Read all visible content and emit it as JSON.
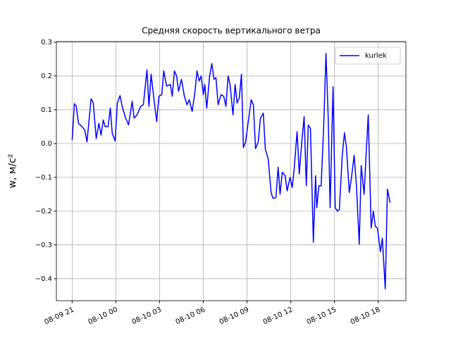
{
  "chart_data": {
    "type": "line",
    "title": "Средняя скорость вертикального ветра",
    "y_label": "w, м/с²",
    "x": [
      "08-09 21:00",
      "08-09 21:09",
      "08-09 21:17",
      "08-09 21:26",
      "08-09 21:41",
      "08-09 21:52",
      "08-09 22:01",
      "08-09 22:18",
      "08-09 22:27",
      "08-09 22:39",
      "08-09 22:50",
      "08-09 22:59",
      "08-09 23:08",
      "08-09 23:16",
      "08-09 23:28",
      "08-09 23:37",
      "08-09 23:45",
      "08-09 23:57",
      "08-10 00:06",
      "08-10 00:17",
      "08-10 00:26",
      "08-10 00:38",
      "08-10 00:52",
      "08-10 01:07",
      "08-10 01:15",
      "08-10 01:27",
      "08-10 01:42",
      "08-10 01:53",
      "08-10 02:08",
      "08-10 02:16",
      "08-10 02:25",
      "08-10 02:37",
      "08-10 02:48",
      "08-10 02:57",
      "08-10 03:09",
      "08-10 03:17",
      "08-10 03:29",
      "08-10 03:44",
      "08-10 03:52",
      "08-10 04:01",
      "08-10 04:10",
      "08-10 04:18",
      "08-10 04:30",
      "08-10 04:42",
      "08-10 04:53",
      "08-10 05:02",
      "08-10 05:14",
      "08-10 05:25",
      "08-10 05:34",
      "08-10 05:43",
      "08-10 05:51",
      "08-10 06:00",
      "08-10 06:06",
      "08-10 06:14",
      "08-10 06:26",
      "08-10 06:35",
      "08-10 06:44",
      "08-10 06:52",
      "08-10 07:01",
      "08-10 07:13",
      "08-10 07:24",
      "08-10 07:33",
      "08-10 07:42",
      "08-10 07:50",
      "08-10 08:02",
      "08-10 08:11",
      "08-10 08:19",
      "08-10 08:28",
      "08-10 08:37",
      "08-10 08:45",
      "08-10 08:54",
      "08-10 09:06",
      "08-10 09:17",
      "08-10 09:26",
      "08-10 09:35",
      "08-10 09:46",
      "08-10 09:55",
      "08-10 10:07",
      "08-10 10:15",
      "08-10 10:27",
      "08-10 10:39",
      "08-10 10:47",
      "08-10 10:59",
      "08-10 11:08",
      "08-10 11:16",
      "08-10 11:25",
      "08-10 11:37",
      "08-10 11:45",
      "08-10 11:57",
      "08-10 12:06",
      "08-10 12:14",
      "08-10 12:26",
      "08-10 12:35",
      "08-10 12:46",
      "08-10 12:55",
      "08-10 13:04",
      "08-10 13:12",
      "08-10 13:21",
      "08-10 13:33",
      "08-10 13:42",
      "08-10 13:47",
      "08-10 13:56",
      "08-10 14:05",
      "08-10 14:16",
      "08-10 14:25",
      "08-10 14:34",
      "08-10 14:42",
      "08-10 14:54",
      "08-10 15:03",
      "08-10 15:12",
      "08-10 15:20",
      "08-10 15:32",
      "08-10 15:41",
      "08-10 15:49",
      "08-10 16:01",
      "08-10 16:10",
      "08-10 16:21",
      "08-10 16:30",
      "08-10 16:42",
      "08-10 16:50",
      "08-10 17:02",
      "08-10 17:11",
      "08-10 17:19",
      "08-10 17:31",
      "08-10 17:40",
      "08-10 17:48",
      "08-10 17:57",
      "08-10 18:09",
      "08-10 18:17",
      "08-10 18:29",
      "08-10 18:38",
      "08-10 18:49"
    ],
    "series": [
      {
        "name": "kurlek",
        "color": "#0000ff",
        "values": [
          0.01,
          0.118,
          0.11,
          0.06,
          0.05,
          0.04,
          0.005,
          0.133,
          0.12,
          0.015,
          0.06,
          0.025,
          0.07,
          0.05,
          0.05,
          0.105,
          0.03,
          0.008,
          0.12,
          0.142,
          0.11,
          0.08,
          0.055,
          0.125,
          0.075,
          0.085,
          0.11,
          0.115,
          0.218,
          0.11,
          0.205,
          0.13,
          0.065,
          0.14,
          0.145,
          0.215,
          0.17,
          0.175,
          0.14,
          0.215,
          0.2,
          0.155,
          0.19,
          0.14,
          0.115,
          0.13,
          0.095,
          0.15,
          0.215,
          0.185,
          0.2,
          0.145,
          0.175,
          0.105,
          0.2,
          0.237,
          0.19,
          0.195,
          0.115,
          0.145,
          0.14,
          0.11,
          0.2,
          0.175,
          0.085,
          0.175,
          0.12,
          0.135,
          0.205,
          -0.012,
          0.005,
          0.07,
          0.13,
          0.115,
          -0.015,
          0.005,
          0.075,
          0.09,
          -0.015,
          -0.045,
          -0.145,
          -0.162,
          -0.16,
          -0.07,
          -0.15,
          -0.085,
          -0.095,
          -0.14,
          -0.1,
          -0.13,
          -0.075,
          0.035,
          -0.09,
          0.01,
          0.08,
          -0.125,
          0.055,
          0.045,
          -0.292,
          -0.095,
          -0.19,
          -0.125,
          -0.125,
          0.06,
          0.267,
          0.08,
          -0.19,
          0.168,
          -0.19,
          -0.2,
          -0.195,
          -0.035,
          0.032,
          -0.01,
          -0.145,
          -0.1,
          -0.035,
          -0.12,
          -0.298,
          -0.065,
          -0.15,
          -0.02,
          0.085,
          -0.25,
          -0.2,
          -0.245,
          -0.25,
          -0.32,
          -0.28,
          -0.43,
          -0.135,
          -0.175
        ]
      }
    ],
    "xlim": [
      "08-09 19:55",
      "08-10 19:54"
    ],
    "xticks": [
      {
        "value": "08-09 21:00",
        "label": "08-09 21"
      },
      {
        "value": "08-10 00:00",
        "label": "08-10 00"
      },
      {
        "value": "08-10 03:00",
        "label": "08-10 03"
      },
      {
        "value": "08-10 06:00",
        "label": "08-10 06"
      },
      {
        "value": "08-10 09:00",
        "label": "08-10 09"
      },
      {
        "value": "08-10 12:00",
        "label": "08-10 12"
      },
      {
        "value": "08-10 15:00",
        "label": "08-10 15"
      },
      {
        "value": "08-10 18:00",
        "label": "08-10 18"
      }
    ],
    "ylim": [
      -0.465,
      0.302
    ],
    "yticks": [
      {
        "value": -0.4,
        "label": "−0.4"
      },
      {
        "value": -0.3,
        "label": "−0.3"
      },
      {
        "value": -0.2,
        "label": "−0.2"
      },
      {
        "value": -0.1,
        "label": "−0.1"
      },
      {
        "value": 0,
        "label": "0.0"
      },
      0.1,
      0.2,
      0.3
    ],
    "grid": true,
    "legend": "upper right"
  }
}
